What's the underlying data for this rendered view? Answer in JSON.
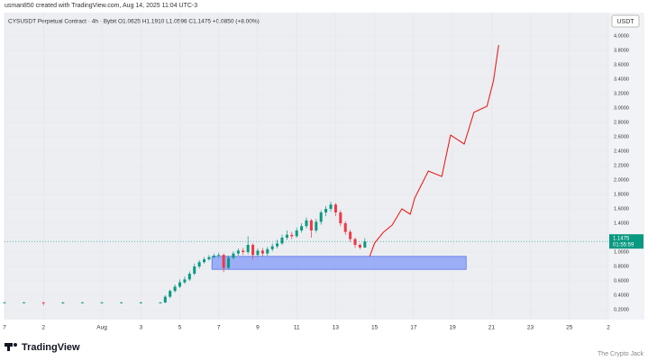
{
  "chart_data": {
    "type": "candlestick",
    "title": "usman850 created with TradingView.com, Aug 14, 2025 11:04 UTC-3",
    "subtitle": "CYSUSDT Perpetual Contract · 4h · Bybit  O1.0625 H1.1910 L1.0596 C1.1475 +0.0850 (+8.00%)",
    "currency": "USDT",
    "brand": "TradingView",
    "watermark": "The Crypto Jack",
    "countdown": "01:55:59",
    "last_price": 1.1475,
    "up_color": "#089981",
    "down_color": "#f23645",
    "grid": true,
    "xlim": [
      0,
      31
    ],
    "ylim": [
      0.0625,
      4.325
    ],
    "xticks": [
      {
        "value": 0,
        "label": "7"
      },
      2,
      {
        "value": 5,
        "label": "Aug"
      },
      {
        "value": 7,
        "label": "3"
      },
      {
        "value": 9,
        "label": "5"
      },
      {
        "value": 11,
        "label": "7"
      },
      {
        "value": 13,
        "label": "9"
      },
      {
        "value": 15,
        "label": "11"
      },
      {
        "value": 17,
        "label": "13"
      },
      {
        "value": 19,
        "label": "15"
      },
      {
        "value": 21,
        "label": "17"
      },
      {
        "value": 23,
        "label": "19"
      },
      {
        "value": 25,
        "label": "21"
      },
      {
        "value": 27,
        "label": "23"
      },
      {
        "value": 29,
        "label": "25"
      },
      {
        "value": 31,
        "label": "2"
      }
    ],
    "yticks": [
      {
        "value": 0.2,
        "label": "0.2000"
      },
      {
        "value": 0.4,
        "label": "0.4000"
      },
      {
        "value": 0.6,
        "label": "0.6000"
      },
      {
        "value": 0.8,
        "label": "0.8000"
      },
      {
        "value": 1.0,
        "label": "1.0000"
      },
      {
        "value": 1.2,
        "label": "1.2000"
      },
      {
        "value": 1.4,
        "label": "1.4000"
      },
      {
        "value": 1.6,
        "label": "1.6000"
      },
      {
        "value": 1.8,
        "label": "1.8000"
      },
      {
        "value": 2.0,
        "label": "2.0000"
      },
      {
        "value": 2.2,
        "label": "2.2000"
      },
      {
        "value": 2.4,
        "label": "2.4000"
      },
      {
        "value": 2.6,
        "label": "2.6000"
      },
      {
        "value": 2.8,
        "label": "2.8000"
      },
      {
        "value": 3.0,
        "label": "3.0000"
      },
      {
        "value": 3.2,
        "label": "3.2000"
      },
      {
        "value": 3.4,
        "label": "3.4000"
      },
      {
        "value": 3.6,
        "label": "3.6000"
      },
      {
        "value": 3.8,
        "label": "3.8000"
      },
      {
        "value": 4.0,
        "label": "4.0000"
      }
    ],
    "candles": {
      "x": [
        0,
        1,
        2,
        3,
        4,
        5,
        6,
        7,
        8,
        8.25,
        8.5,
        8.75,
        9,
        9.25,
        9.5,
        9.75,
        10,
        10.25,
        10.5,
        10.75,
        11,
        11.25,
        11.5,
        11.75,
        12,
        12.25,
        12.5,
        12.75,
        13,
        13.25,
        13.5,
        13.75,
        14,
        14.25,
        14.5,
        14.75,
        15,
        15.25,
        15.5,
        15.75,
        16,
        16.25,
        16.5,
        16.75,
        17,
        17.25,
        17.5,
        17.75,
        18,
        18.25,
        18.5
      ],
      "open": [
        0.3,
        0.3,
        0.3,
        0.29,
        0.3,
        0.3,
        0.3,
        0.3,
        0.3,
        0.3,
        0.38,
        0.46,
        0.52,
        0.58,
        0.62,
        0.7,
        0.8,
        0.86,
        0.9,
        0.93,
        0.95,
        0.96,
        0.78,
        0.92,
        0.98,
        1.02,
        1.0,
        1.1,
        0.96,
        1.02,
        0.98,
        1.04,
        1.08,
        1.12,
        1.2,
        1.24,
        1.22,
        1.3,
        1.36,
        1.44,
        1.3,
        1.42,
        1.55,
        1.6,
        1.66,
        1.55,
        1.4,
        1.28,
        1.18,
        1.1,
        1.0625
      ],
      "high": [
        0.31,
        0.31,
        0.31,
        0.31,
        0.31,
        0.31,
        0.31,
        0.31,
        0.31,
        0.4,
        0.48,
        0.55,
        0.62,
        0.66,
        0.73,
        0.84,
        0.89,
        0.93,
        0.96,
        0.98,
        0.99,
        0.98,
        0.95,
        1.01,
        1.05,
        1.06,
        1.22,
        1.12,
        1.05,
        1.06,
        1.07,
        1.12,
        1.17,
        1.24,
        1.3,
        1.28,
        1.34,
        1.4,
        1.48,
        1.46,
        1.46,
        1.58,
        1.64,
        1.7,
        1.68,
        1.58,
        1.43,
        1.31,
        1.2,
        1.12,
        1.191
      ],
      "low": [
        0.29,
        0.29,
        0.26,
        0.28,
        0.29,
        0.29,
        0.29,
        0.29,
        0.29,
        0.29,
        0.36,
        0.44,
        0.5,
        0.56,
        0.6,
        0.68,
        0.77,
        0.84,
        0.88,
        0.91,
        0.92,
        0.72,
        0.76,
        0.9,
        0.95,
        0.96,
        0.97,
        0.9,
        0.93,
        0.94,
        0.95,
        1.01,
        1.05,
        1.1,
        1.17,
        1.18,
        1.2,
        1.27,
        1.33,
        1.2,
        1.27,
        1.38,
        1.5,
        1.56,
        1.5,
        1.36,
        1.24,
        1.14,
        1.06,
        1.04,
        1.0596
      ],
      "close": [
        0.3,
        0.3,
        0.29,
        0.3,
        0.3,
        0.3,
        0.3,
        0.3,
        0.3,
        0.38,
        0.46,
        0.52,
        0.58,
        0.62,
        0.7,
        0.8,
        0.86,
        0.9,
        0.93,
        0.95,
        0.96,
        0.78,
        0.92,
        0.98,
        1.02,
        1.0,
        1.1,
        0.96,
        1.02,
        0.98,
        1.04,
        1.08,
        1.12,
        1.2,
        1.24,
        1.22,
        1.3,
        1.36,
        1.44,
        1.3,
        1.42,
        1.55,
        1.6,
        1.66,
        1.55,
        1.4,
        1.28,
        1.18,
        1.1,
        1.0625,
        1.1475
      ]
    },
    "zone": {
      "color": "#8da2f7",
      "x": [
        10.65,
        23.7
      ],
      "y": [
        0.76,
        0.94
      ]
    },
    "projection": {
      "color": "#e8221c",
      "x": [
        18.75,
        19.0,
        19.45,
        19.9,
        20.4,
        20.83,
        21.06,
        21.76,
        22.45,
        22.9,
        23.6,
        24.1,
        24.77,
        25.1,
        25.37
      ],
      "values": [
        0.94,
        1.125,
        1.275,
        1.375,
        1.6,
        1.525,
        1.75,
        2.125,
        2.05,
        2.625,
        2.5,
        2.94,
        3.025,
        3.375,
        3.875
      ]
    }
  }
}
